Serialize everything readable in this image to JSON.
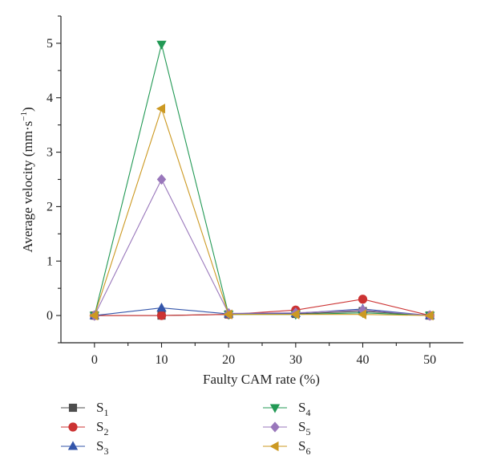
{
  "chart_data": {
    "type": "line",
    "title": "",
    "xlabel": "Faulty CAM rate (%)",
    "ylabel_main": "Average velocity (mm·s",
    "ylabel_sup": "−1",
    "ylabel_tail": ")",
    "x": [
      0,
      10,
      20,
      30,
      40,
      50
    ],
    "xlim": [
      -5,
      55
    ],
    "ylim": [
      -0.5,
      5.5
    ],
    "xticks": [
      0,
      10,
      20,
      30,
      40,
      50
    ],
    "yticks": [
      0,
      1,
      2,
      3,
      4,
      5
    ],
    "grid": false,
    "legend_position": "bottom",
    "series": [
      {
        "label": "S",
        "sub": "1",
        "color": "#4d4d4d",
        "marker": "square",
        "values": [
          0.0,
          0.0,
          0.02,
          0.03,
          0.08,
          0.0
        ]
      },
      {
        "label": "S",
        "sub": "2",
        "color": "#cc3333",
        "marker": "circle",
        "values": [
          0.0,
          0.0,
          0.02,
          0.1,
          0.3,
          0.0
        ]
      },
      {
        "label": "S",
        "sub": "3",
        "color": "#3355aa",
        "marker": "triangle-up",
        "values": [
          0.0,
          0.14,
          0.03,
          0.04,
          0.12,
          0.0
        ]
      },
      {
        "label": "S",
        "sub": "4",
        "color": "#229955",
        "marker": "triangle-down",
        "values": [
          0.0,
          4.98,
          0.02,
          0.02,
          0.05,
          0.0
        ]
      },
      {
        "label": "S",
        "sub": "5",
        "color": "#9977bb",
        "marker": "diamond",
        "values": [
          0.0,
          2.5,
          0.04,
          0.05,
          0.1,
          0.0
        ]
      },
      {
        "label": "S",
        "sub": "6",
        "color": "#cc9922",
        "marker": "triangle-left",
        "values": [
          0.0,
          3.8,
          0.02,
          0.02,
          0.02,
          0.0
        ]
      }
    ]
  }
}
